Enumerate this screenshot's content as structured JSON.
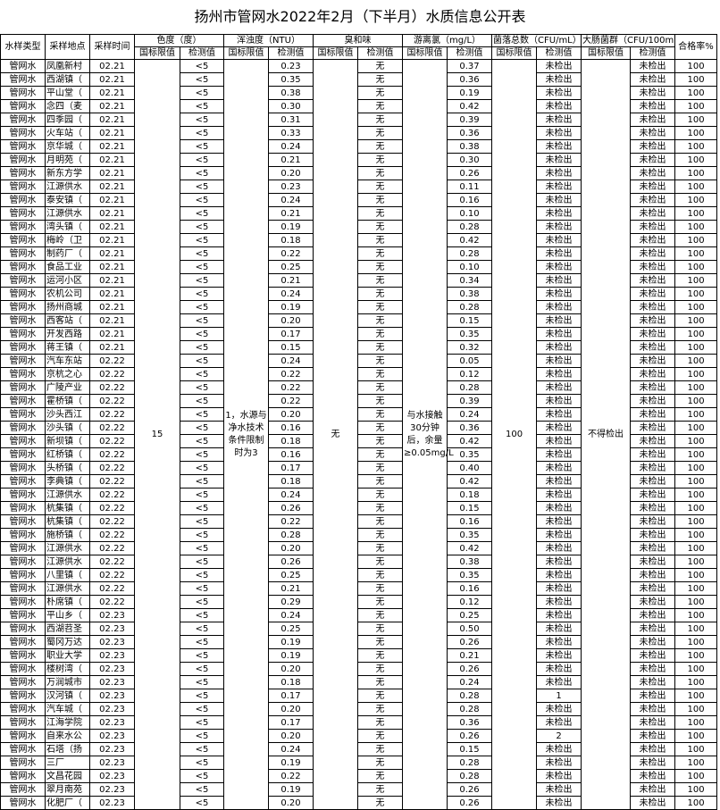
{
  "header": {
    "title": "扬州市管网水2022年2月（下半月）水质信息公开表"
  },
  "table": {
    "fixed_columns": [
      "水样类型",
      "采样地点",
      "采样时间"
    ],
    "groups": [
      "色度（度）",
      "浑浊度（NTU）",
      "臭和味",
      "游离氯（mg/L）",
      "菌落总数（CFU/mL）",
      "大肠菌群（CFU/100m"
    ],
    "last_column": "合格率%",
    "subheaders": [
      "国标限值",
      "检测值",
      "国标限值",
      "检测值",
      "国标限值",
      "检测值",
      "国标限值",
      "检测值",
      "国标限值",
      "检测值",
      "国标限值",
      "检测值"
    ],
    "standards": [
      "15",
      "1，水源与净水技术条件限制时为3",
      "无",
      "与水接触30分钟后，余量≥0.05mg/L",
      "100",
      "不得检出"
    ],
    "rows": [
      [
        "管网水",
        "凤凰新村",
        "02.21",
        "<5",
        "0.23",
        "无",
        "0.37",
        "未检出",
        "未检出",
        "100"
      ],
      [
        "管网水",
        "西湖镇（",
        "02.21",
        "<5",
        "0.35",
        "无",
        "0.36",
        "未检出",
        "未检出",
        "100"
      ],
      [
        "管网水",
        "平山堂（",
        "02.21",
        "<5",
        "0.38",
        "无",
        "0.19",
        "未检出",
        "未检出",
        "100"
      ],
      [
        "管网水",
        "念四（麦",
        "02.21",
        "<5",
        "0.30",
        "无",
        "0.42",
        "未检出",
        "未检出",
        "100"
      ],
      [
        "管网水",
        "四季园（",
        "02.21",
        "<5",
        "0.31",
        "无",
        "0.39",
        "未检出",
        "未检出",
        "100"
      ],
      [
        "管网水",
        "火车站（",
        "02.21",
        "<5",
        "0.33",
        "无",
        "0.36",
        "未检出",
        "未检出",
        "100"
      ],
      [
        "管网水",
        "京华城（",
        "02.21",
        "<5",
        "0.24",
        "无",
        "0.38",
        "未检出",
        "未检出",
        "100"
      ],
      [
        "管网水",
        "月明苑（",
        "02.21",
        "<5",
        "0.21",
        "无",
        "0.30",
        "未检出",
        "未检出",
        "100"
      ],
      [
        "管网水",
        "新东方学",
        "02.21",
        "<5",
        "0.20",
        "无",
        "0.26",
        "未检出",
        "未检出",
        "100"
      ],
      [
        "管网水",
        "江源供水",
        "02.21",
        "<5",
        "0.23",
        "无",
        "0.11",
        "未检出",
        "未检出",
        "100"
      ],
      [
        "管网水",
        "泰安镇（",
        "02.21",
        "<5",
        "0.24",
        "无",
        "0.16",
        "未检出",
        "未检出",
        "100"
      ],
      [
        "管网水",
        "江源供水",
        "02.21",
        "<5",
        "0.21",
        "无",
        "0.10",
        "未检出",
        "未检出",
        "100"
      ],
      [
        "管网水",
        "湾头镇（",
        "02.21",
        "<5",
        "0.19",
        "无",
        "0.28",
        "未检出",
        "未检出",
        "100"
      ],
      [
        "管网水",
        "梅岭（卫",
        "02.21",
        "<5",
        "0.18",
        "无",
        "0.42",
        "未检出",
        "未检出",
        "100"
      ],
      [
        "管网水",
        "制药厂（",
        "02.21",
        "<5",
        "0.22",
        "无",
        "0.28",
        "未检出",
        "未检出",
        "100"
      ],
      [
        "管网水",
        "食品工业",
        "02.21",
        "<5",
        "0.25",
        "无",
        "0.10",
        "未检出",
        "未检出",
        "100"
      ],
      [
        "管网水",
        "运河小区",
        "02.21",
        "<5",
        "0.21",
        "无",
        "0.34",
        "未检出",
        "未检出",
        "100"
      ],
      [
        "管网水",
        "农机公司",
        "02.21",
        "<5",
        "0.24",
        "无",
        "0.38",
        "未检出",
        "未检出",
        "100"
      ],
      [
        "管网水",
        "扬州商城",
        "02.21",
        "<5",
        "0.19",
        "无",
        "0.28",
        "未检出",
        "未检出",
        "100"
      ],
      [
        "管网水",
        "西客站（",
        "02.21",
        "<5",
        "0.20",
        "无",
        "0.15",
        "未检出",
        "未检出",
        "100"
      ],
      [
        "管网水",
        "开发西路",
        "02.21",
        "<5",
        "0.17",
        "无",
        "0.35",
        "未检出",
        "未检出",
        "100"
      ],
      [
        "管网水",
        "蒋王镇（",
        "02.21",
        "<5",
        "0.15",
        "无",
        "0.32",
        "未检出",
        "未检出",
        "100"
      ],
      [
        "管网水",
        "汽车东站",
        "02.22",
        "<5",
        "0.24",
        "无",
        "0.05",
        "未检出",
        "未检出",
        "100"
      ],
      [
        "管网水",
        "京杭之心",
        "02.22",
        "<5",
        "0.22",
        "无",
        "0.12",
        "未检出",
        "未检出",
        "100"
      ],
      [
        "管网水",
        "广陵产业",
        "02.22",
        "<5",
        "0.22",
        "无",
        "0.28",
        "未检出",
        "未检出",
        "100"
      ],
      [
        "管网水",
        "霍桥镇（",
        "02.22",
        "<5",
        "0.22",
        "无",
        "0.39",
        "未检出",
        "未检出",
        "100"
      ],
      [
        "管网水",
        "沙头西江",
        "02.22",
        "<5",
        "0.20",
        "无",
        "0.24",
        "未检出",
        "未检出",
        "100"
      ],
      [
        "管网水",
        "沙头镇（",
        "02.22",
        "<5",
        "0.16",
        "无",
        "0.36",
        "未检出",
        "未检出",
        "100"
      ],
      [
        "管网水",
        "新坝镇（",
        "02.22",
        "<5",
        "0.18",
        "无",
        "0.42",
        "未检出",
        "未检出",
        "100"
      ],
      [
        "管网水",
        "红桥镇（",
        "02.22",
        "<5",
        "0.16",
        "无",
        "0.35",
        "未检出",
        "未检出",
        "100"
      ],
      [
        "管网水",
        "头桥镇（",
        "02.22",
        "<5",
        "0.17",
        "无",
        "0.40",
        "未检出",
        "未检出",
        "100"
      ],
      [
        "管网水",
        "李典镇（",
        "02.22",
        "<5",
        "0.18",
        "无",
        "0.42",
        "未检出",
        "未检出",
        "100"
      ],
      [
        "管网水",
        "江源供水",
        "02.22",
        "<5",
        "0.24",
        "无",
        "0.18",
        "未检出",
        "未检出",
        "100"
      ],
      [
        "管网水",
        "杭集镇（",
        "02.22",
        "<5",
        "0.26",
        "无",
        "0.15",
        "未检出",
        "未检出",
        "100"
      ],
      [
        "管网水",
        "杭集镇（",
        "02.22",
        "<5",
        "0.22",
        "无",
        "0.16",
        "未检出",
        "未检出",
        "100"
      ],
      [
        "管网水",
        "施桥镇（",
        "02.22",
        "<5",
        "0.28",
        "无",
        "0.35",
        "未检出",
        "未检出",
        "100"
      ],
      [
        "管网水",
        "江源供水",
        "02.22",
        "<5",
        "0.20",
        "无",
        "0.42",
        "未检出",
        "未检出",
        "100"
      ],
      [
        "管网水",
        "江源供水",
        "02.22",
        "<5",
        "0.26",
        "无",
        "0.38",
        "未检出",
        "未检出",
        "100"
      ],
      [
        "管网水",
        "八里镇（",
        "02.22",
        "<5",
        "0.25",
        "无",
        "0.35",
        "未检出",
        "未检出",
        "100"
      ],
      [
        "管网水",
        "江源供水",
        "02.22",
        "<5",
        "0.21",
        "无",
        "0.16",
        "未检出",
        "未检出",
        "100"
      ],
      [
        "管网水",
        "朴席镇（",
        "02.22",
        "<5",
        "0.29",
        "无",
        "0.12",
        "未检出",
        "未检出",
        "100"
      ],
      [
        "管网水",
        "平山乡（",
        "02.23",
        "<5",
        "0.24",
        "无",
        "0.25",
        "未检出",
        "未检出",
        "100"
      ],
      [
        "管网水",
        "西湖苕圣",
        "02.23",
        "<5",
        "0.25",
        "无",
        "0.50",
        "未检出",
        "未检出",
        "100"
      ],
      [
        "管网水",
        "蜀冈万达",
        "02.23",
        "<5",
        "0.19",
        "无",
        "0.26",
        "未检出",
        "未检出",
        "100"
      ],
      [
        "管网水",
        "职业大学",
        "02.23",
        "<5",
        "0.19",
        "无",
        "0.21",
        "未检出",
        "未检出",
        "100"
      ],
      [
        "管网水",
        "楼树湾（",
        "02.23",
        "<5",
        "0.20",
        "无",
        "0.26",
        "未检出",
        "未检出",
        "100"
      ],
      [
        "管网水",
        "万润城市",
        "02.23",
        "<5",
        "0.18",
        "无",
        "0.24",
        "未检出",
        "未检出",
        "100"
      ],
      [
        "管网水",
        "汉河镇（",
        "02.23",
        "<5",
        "0.17",
        "无",
        "0.28",
        "1",
        "未检出",
        "100"
      ],
      [
        "管网水",
        "汽车城（",
        "02.23",
        "<5",
        "0.20",
        "无",
        "0.28",
        "未检出",
        "未检出",
        "100"
      ],
      [
        "管网水",
        "江海学院",
        "02.23",
        "<5",
        "0.17",
        "无",
        "0.36",
        "未检出",
        "未检出",
        "100"
      ],
      [
        "管网水",
        "自来水公",
        "02.23",
        "<5",
        "0.20",
        "无",
        "0.26",
        "2",
        "未检出",
        "100"
      ],
      [
        "管网水",
        "石塔（扬",
        "02.23",
        "<5",
        "0.24",
        "无",
        "0.15",
        "未检出",
        "未检出",
        "100"
      ],
      [
        "管网水",
        "三厂",
        "02.23",
        "<5",
        "0.19",
        "无",
        "0.28",
        "未检出",
        "未检出",
        "100"
      ],
      [
        "管网水",
        "文昌花园",
        "02.23",
        "<5",
        "0.22",
        "无",
        "0.28",
        "未检出",
        "未检出",
        "100"
      ],
      [
        "管网水",
        "翠月南苑",
        "02.23",
        "<5",
        "0.19",
        "无",
        "0.26",
        "未检出",
        "未检出",
        "100"
      ],
      [
        "管网水",
        "化肥厂（",
        "02.23",
        "<5",
        "0.20",
        "无",
        "0.26",
        "未检出",
        "未检出",
        "100"
      ]
    ]
  }
}
